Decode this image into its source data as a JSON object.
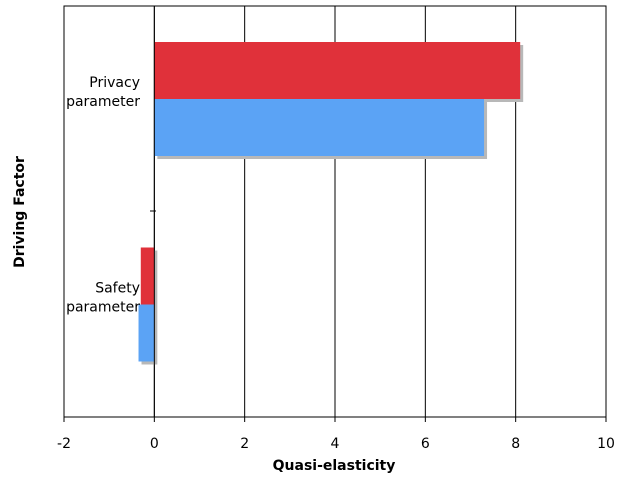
{
  "chart_data": {
    "type": "bar",
    "orientation": "horizontal",
    "title": "",
    "xlabel": "Quasi-elasticity",
    "ylabel": "Driving Factor",
    "xlim": [
      -2,
      10
    ],
    "xticks": [
      -2,
      0,
      2,
      4,
      6,
      8,
      10
    ],
    "grid": "vertical",
    "legend": "none",
    "categories": [
      {
        "lines": [
          "Privacy",
          "parameter"
        ]
      },
      {
        "lines": [
          "Safety",
          "parameter"
        ]
      }
    ],
    "series": [
      {
        "values": [
          8.1,
          -0.3
        ],
        "color": "#e0313a"
      },
      {
        "values": [
          7.3,
          -0.35
        ],
        "color": "#5ba3f5"
      }
    ]
  }
}
